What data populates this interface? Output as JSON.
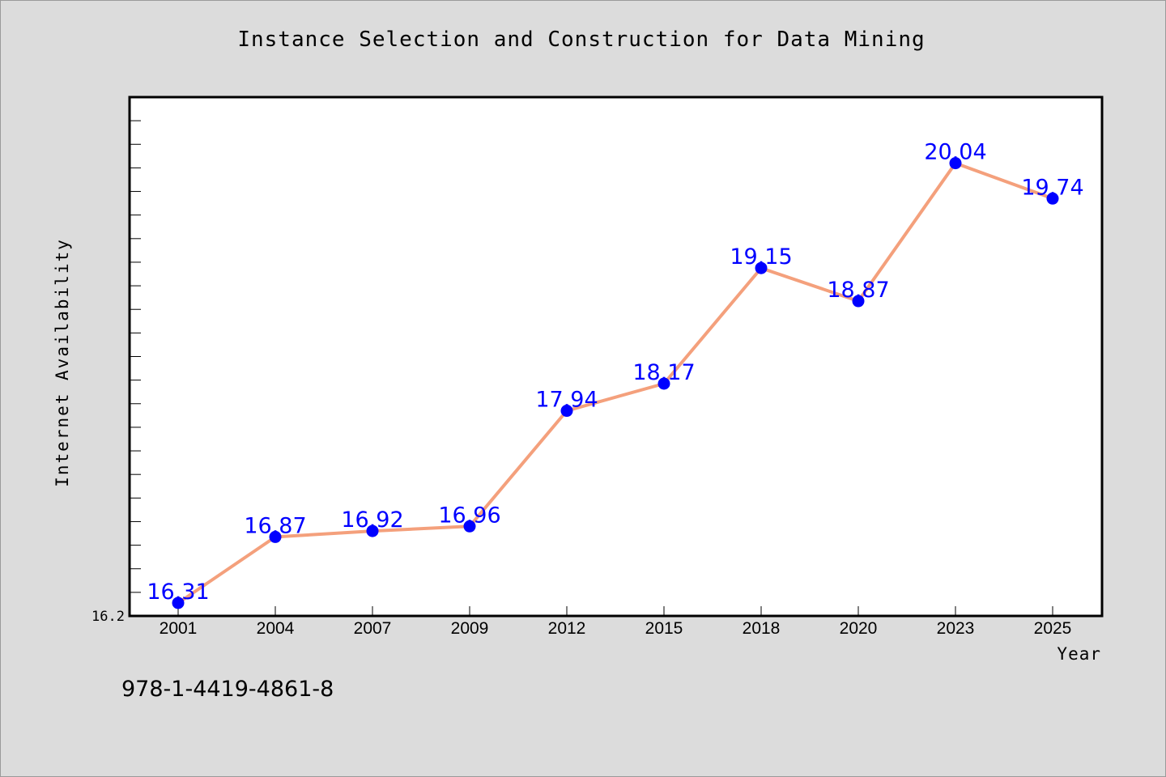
{
  "chart_data": {
    "type": "line",
    "title": "Instance Selection and Construction for Data Mining",
    "xlabel": "Year",
    "ylabel": "Internet Availability",
    "categories": [
      "2001",
      "2004",
      "2007",
      "2009",
      "2012",
      "2015",
      "2018",
      "2020",
      "2023",
      "2025"
    ],
    "series": [
      {
        "values": [
          16.31,
          16.87,
          16.92,
          16.96,
          17.94,
          18.17,
          19.15,
          18.87,
          20.04,
          19.74
        ]
      }
    ],
    "ylim": [
      16.2,
      20.6
    ],
    "y_tick_labels": [
      "16.2"
    ],
    "data_labels": [
      "16.31",
      "16.87",
      "16.92",
      "16.96",
      "17.94",
      "18.17",
      "19.15",
      "18.87",
      "20.04",
      "19.74"
    ],
    "grid": false,
    "legend": "none"
  },
  "colors": {
    "background": "#dcdcdc",
    "plot_area": "#ffffff",
    "line": "#f4a07c",
    "marker": "#0000ff",
    "data_label": "#0000ff"
  },
  "footer": {
    "code": "978-1-4419-4861-8"
  }
}
